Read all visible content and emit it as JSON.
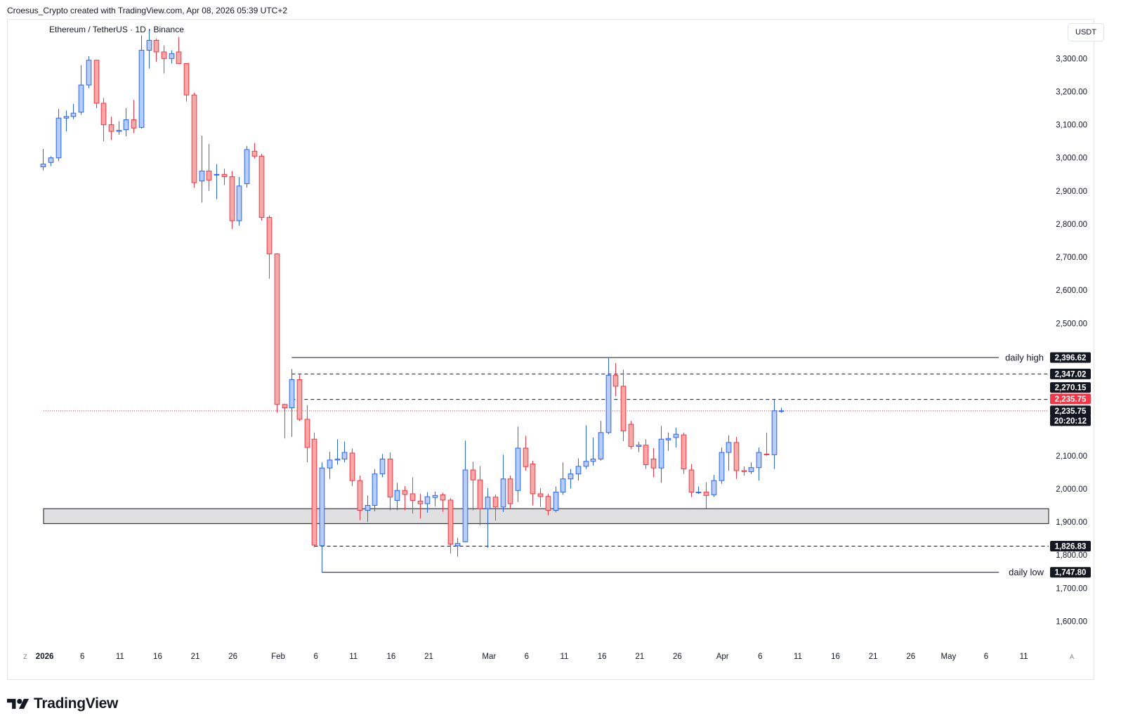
{
  "header": {
    "credit": "Croesus_Crypto created with TradingView.com, Apr 08, 2026 05:39 UTC+2"
  },
  "symbol": {
    "title": "Ethereum / TetherUS · 1D · Binance",
    "currency": "USDT"
  },
  "brand": {
    "name": "TradingView"
  },
  "corner": {
    "left": "Z",
    "right": "A"
  },
  "chart_data": {
    "type": "candlestick",
    "title": "Ethereum / TetherUS · 1D · Binance",
    "xlabel": "",
    "ylabel": "",
    "ylim": [
      1535,
      3392
    ],
    "y_ticks": [
      1600,
      1700,
      1800,
      1900,
      2000,
      2100,
      2200,
      2300,
      2400,
      2500,
      2600,
      2700,
      2800,
      2900,
      3000,
      3100,
      3200,
      3300
    ],
    "x_ticks": [
      {
        "label": "2026",
        "day": 0
      },
      {
        "label": "6",
        "day": 5
      },
      {
        "label": "11",
        "day": 10
      },
      {
        "label": "16",
        "day": 15
      },
      {
        "label": "21",
        "day": 20
      },
      {
        "label": "26",
        "day": 25
      },
      {
        "label": "Feb",
        "day": 31
      },
      {
        "label": "6",
        "day": 36
      },
      {
        "label": "11",
        "day": 41
      },
      {
        "label": "16",
        "day": 46
      },
      {
        "label": "21",
        "day": 51
      },
      {
        "label": "Mar",
        "day": 59
      },
      {
        "label": "6",
        "day": 64
      },
      {
        "label": "11",
        "day": 69
      },
      {
        "label": "16",
        "day": 74
      },
      {
        "label": "21",
        "day": 79
      },
      {
        "label": "26",
        "day": 84
      },
      {
        "label": "Apr",
        "day": 90
      },
      {
        "label": "6",
        "day": 95
      },
      {
        "label": "11",
        "day": 100
      },
      {
        "label": "16",
        "day": 105
      },
      {
        "label": "21",
        "day": 110
      },
      {
        "label": "26",
        "day": 115
      },
      {
        "label": "May",
        "day": 120
      },
      {
        "label": "6",
        "day": 125
      },
      {
        "label": "11",
        "day": 130
      }
    ],
    "x_range_days": [
      -0.15,
      133.3
    ],
    "colors": {
      "up": "#b6cdf8",
      "up_border": "#2962ff",
      "down": "#f7a9a7",
      "down_border": "#f23645"
    },
    "candles": [
      [
        -0.2,
        2973,
        3027,
        2962,
        2981
      ],
      [
        0.8,
        2986,
        3005,
        2975,
        3000
      ],
      [
        1.8,
        3000,
        3148,
        2990,
        3120
      ],
      [
        2.8,
        3120,
        3143,
        3080,
        3125
      ],
      [
        3.8,
        3125,
        3163,
        3117,
        3135
      ],
      [
        4.8,
        3138,
        3280,
        3130,
        3220
      ],
      [
        5.8,
        3220,
        3307,
        3210,
        3295
      ],
      [
        6.8,
        3295,
        3297,
        3150,
        3165
      ],
      [
        7.8,
        3165,
        3181,
        3050,
        3100
      ],
      [
        8.8,
        3100,
        3124,
        3054,
        3080
      ],
      [
        9.8,
        3080,
        3110,
        3070,
        3083
      ],
      [
        10.8,
        3085,
        3150,
        3065,
        3115
      ],
      [
        11.8,
        3115,
        3175,
        3075,
        3090
      ],
      [
        12.8,
        3092,
        3370,
        3088,
        3325
      ],
      [
        13.8,
        3325,
        3390,
        3270,
        3355
      ],
      [
        14.8,
        3355,
        3360,
        3290,
        3320
      ],
      [
        15.8,
        3320,
        3340,
        3255,
        3300
      ],
      [
        16.8,
        3300,
        3325,
        3285,
        3315
      ],
      [
        17.8,
        3320,
        3365,
        3284,
        3285
      ],
      [
        18.8,
        3285,
        3286,
        3170,
        3190
      ],
      [
        19.8,
        3190,
        3197,
        2910,
        2925
      ],
      [
        20.8,
        2930,
        3067,
        2865,
        2960
      ],
      [
        21.8,
        2960,
        3042,
        2900,
        2933
      ],
      [
        22.8,
        2950,
        2981,
        2875,
        2950
      ],
      [
        23.8,
        2950,
        2967,
        2918,
        2943
      ],
      [
        24.8,
        2943,
        2960,
        2785,
        2810
      ],
      [
        25.8,
        2810,
        2942,
        2795,
        2915
      ],
      [
        26.8,
        2922,
        3036,
        2910,
        3025
      ],
      [
        27.8,
        3020,
        3045,
        2998,
        3005
      ],
      [
        28.8,
        3005,
        3012,
        2810,
        2820
      ],
      [
        29.8,
        2820,
        2826,
        2635,
        2710
      ],
      [
        30.8,
        2710,
        2712,
        2230,
        2255
      ],
      [
        31.8,
        2255,
        2257,
        2152,
        2245
      ],
      [
        32.8,
        2245,
        2362,
        2157,
        2330
      ],
      [
        33.8,
        2330,
        2345,
        2205,
        2210
      ],
      [
        34.8,
        2210,
        2253,
        2080,
        2125
      ],
      [
        35.8,
        2150,
        2170,
        1824,
        1830
      ],
      [
        36.8,
        1828,
        2080,
        1748,
        2063
      ],
      [
        37.8,
        2063,
        2112,
        2030,
        2087
      ],
      [
        38.8,
        2087,
        2150,
        2073,
        2090
      ],
      [
        39.8,
        2090,
        2143,
        2080,
        2110
      ],
      [
        40.8,
        2108,
        2122,
        2008,
        2025
      ],
      [
        41.8,
        2025,
        2040,
        1905,
        1935
      ],
      [
        42.8,
        1935,
        1980,
        1900,
        1950
      ],
      [
        43.8,
        1950,
        2060,
        1932,
        2045
      ],
      [
        44.8,
        2045,
        2105,
        2035,
        2090
      ],
      [
        45.8,
        2090,
        2110,
        1935,
        1975
      ],
      [
        46.8,
        1965,
        2018,
        1935,
        1995
      ],
      [
        47.8,
        1995,
        2008,
        1935,
        1983
      ],
      [
        48.8,
        1985,
        2035,
        1925,
        1965
      ],
      [
        49.8,
        1963,
        1985,
        1910,
        1955
      ],
      [
        50.8,
        1955,
        1990,
        1928,
        1976
      ],
      [
        51.8,
        1974,
        1992,
        1947,
        1980
      ],
      [
        52.8,
        1982,
        1988,
        1930,
        1966
      ],
      [
        53.8,
        1966,
        1972,
        1805,
        1833
      ],
      [
        54.8,
        1828,
        1852,
        1795,
        1835
      ],
      [
        55.8,
        1840,
        2146,
        1838,
        2057
      ],
      [
        56.8,
        2057,
        2082,
        1935,
        2027
      ],
      [
        57.8,
        2027,
        2069,
        1890,
        1940
      ],
      [
        58.8,
        1940,
        2002,
        1822,
        1975
      ],
      [
        59.8,
        1975,
        1983,
        1904,
        1945
      ],
      [
        60.8,
        1945,
        2103,
        1930,
        2030
      ],
      [
        61.8,
        2030,
        2040,
        1942,
        1955
      ],
      [
        62.8,
        1995,
        2188,
        1960,
        2123
      ],
      [
        63.8,
        2123,
        2160,
        2055,
        2067
      ],
      [
        64.8,
        2075,
        2085,
        1950,
        1985
      ],
      [
        65.8,
        1985,
        2002,
        1945,
        1977
      ],
      [
        66.8,
        1977,
        1985,
        1920,
        1935
      ],
      [
        67.8,
        1935,
        2007,
        1929,
        1990
      ],
      [
        68.8,
        1990,
        2080,
        1982,
        2030
      ],
      [
        69.8,
        2030,
        2060,
        2001,
        2045
      ],
      [
        70.8,
        2045,
        2092,
        2025,
        2068
      ],
      [
        71.8,
        2068,
        2192,
        2060,
        2083
      ],
      [
        72.8,
        2083,
        2155,
        2070,
        2090
      ],
      [
        73.8,
        2090,
        2205,
        2085,
        2170
      ],
      [
        74.8,
        2170,
        2397,
        2165,
        2343
      ],
      [
        75.8,
        2343,
        2380,
        2280,
        2310
      ],
      [
        76.8,
        2310,
        2360,
        2144,
        2175
      ],
      [
        77.8,
        2195,
        2205,
        2120,
        2128
      ],
      [
        78.8,
        2128,
        2142,
        2111,
        2132
      ],
      [
        79.8,
        2132,
        2150,
        2060,
        2073
      ],
      [
        80.8,
        2090,
        2123,
        2035,
        2063
      ],
      [
        81.8,
        2063,
        2190,
        2018,
        2150
      ],
      [
        82.8,
        2148,
        2170,
        2115,
        2152
      ],
      [
        83.8,
        2155,
        2185,
        2125,
        2165
      ],
      [
        84.8,
        2163,
        2170,
        2045,
        2060
      ],
      [
        85.8,
        2057,
        2075,
        1975,
        1990
      ],
      [
        86.8,
        1990,
        2007,
        1985,
        1990
      ],
      [
        87.8,
        1990,
        2020,
        1940,
        1980
      ],
      [
        88.8,
        1982,
        2042,
        1975,
        2025
      ],
      [
        89.8,
        2025,
        2125,
        2015,
        2110
      ],
      [
        90.8,
        2110,
        2162,
        2055,
        2140
      ],
      [
        91.8,
        2140,
        2157,
        2030,
        2055
      ],
      [
        92.8,
        2055,
        2068,
        2040,
        2052
      ],
      [
        93.8,
        2052,
        2080,
        2045,
        2064
      ],
      [
        94.8,
        2064,
        2125,
        2025,
        2110
      ],
      [
        95.8,
        2105,
        2170,
        2100,
        2103
      ],
      [
        96.8,
        2103,
        2270,
        2060,
        2235.75
      ],
      [
        97.8,
        2235.75,
        2245,
        2230,
        2235.75
      ]
    ],
    "levels": [
      {
        "price": 2396.62,
        "style": "solid",
        "start_day": 32.8,
        "label": "daily high",
        "tag": "2,396.62",
        "tag_color": "#131722"
      },
      {
        "price": 2347.02,
        "style": "dashed",
        "start_day": 32.8,
        "label": "",
        "tag": "2,347.02",
        "tag_color": "#131722"
      },
      {
        "price": 2270.15,
        "style": "dashed",
        "start_day": 32.8,
        "label": "",
        "tag": "2,270.15",
        "tag_color": "#131722"
      },
      {
        "price": 1826.83,
        "style": "dashed",
        "start_day": 35.8,
        "label": "",
        "tag": "1,826.83",
        "tag_color": "#131722"
      },
      {
        "price": 1747.8,
        "style": "solid",
        "start_day": 36.8,
        "label": "daily low",
        "tag": "1,747.80",
        "tag_color": "#131722"
      }
    ],
    "zone": {
      "top": 1940,
      "bottom": 1895,
      "fill": "#e0e0e0",
      "border": "#131722"
    },
    "current_price": {
      "price": 2235.75,
      "tag": "2,235.75",
      "tag_color": "#f23645",
      "line_color": "#f23645",
      "last_tag": "2,235.75",
      "countdown": "20:20:12"
    }
  }
}
